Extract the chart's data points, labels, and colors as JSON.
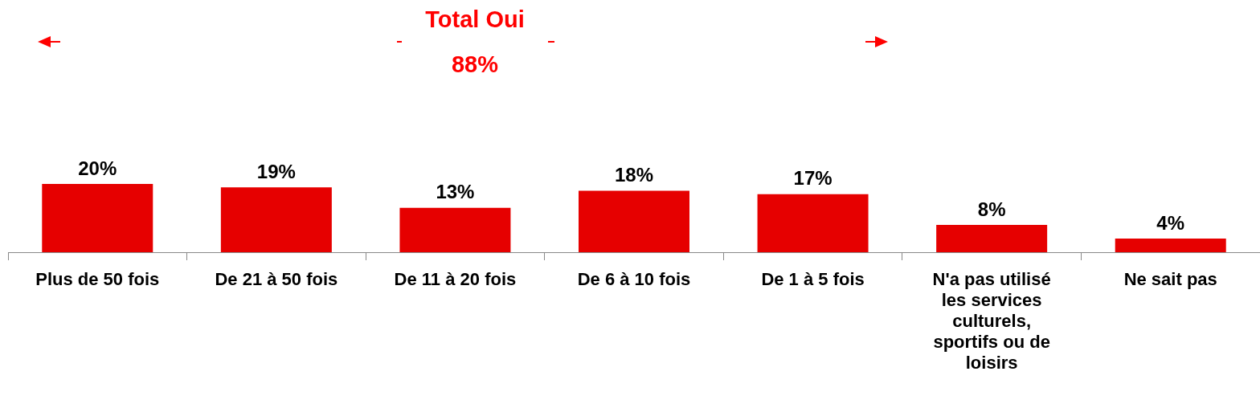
{
  "chart_data": {
    "type": "bar",
    "categories": [
      "Plus de 50 fois",
      "De 21 à 50 fois",
      "De 11 à 20 fois",
      "De 6 à 10 fois",
      "De 1 à 5 fois",
      "N'a pas utilisé les services culturels, sportifs ou de loisirs",
      "Ne sait pas"
    ],
    "values": [
      20,
      19,
      13,
      18,
      17,
      8,
      4
    ],
    "value_labels": [
      "20%",
      "19%",
      "13%",
      "18%",
      "17%",
      "8%",
      "4%"
    ],
    "color": "#e60000",
    "annotations": [
      "Total Oui",
      "88%"
    ],
    "legend": false,
    "grid": false
  }
}
